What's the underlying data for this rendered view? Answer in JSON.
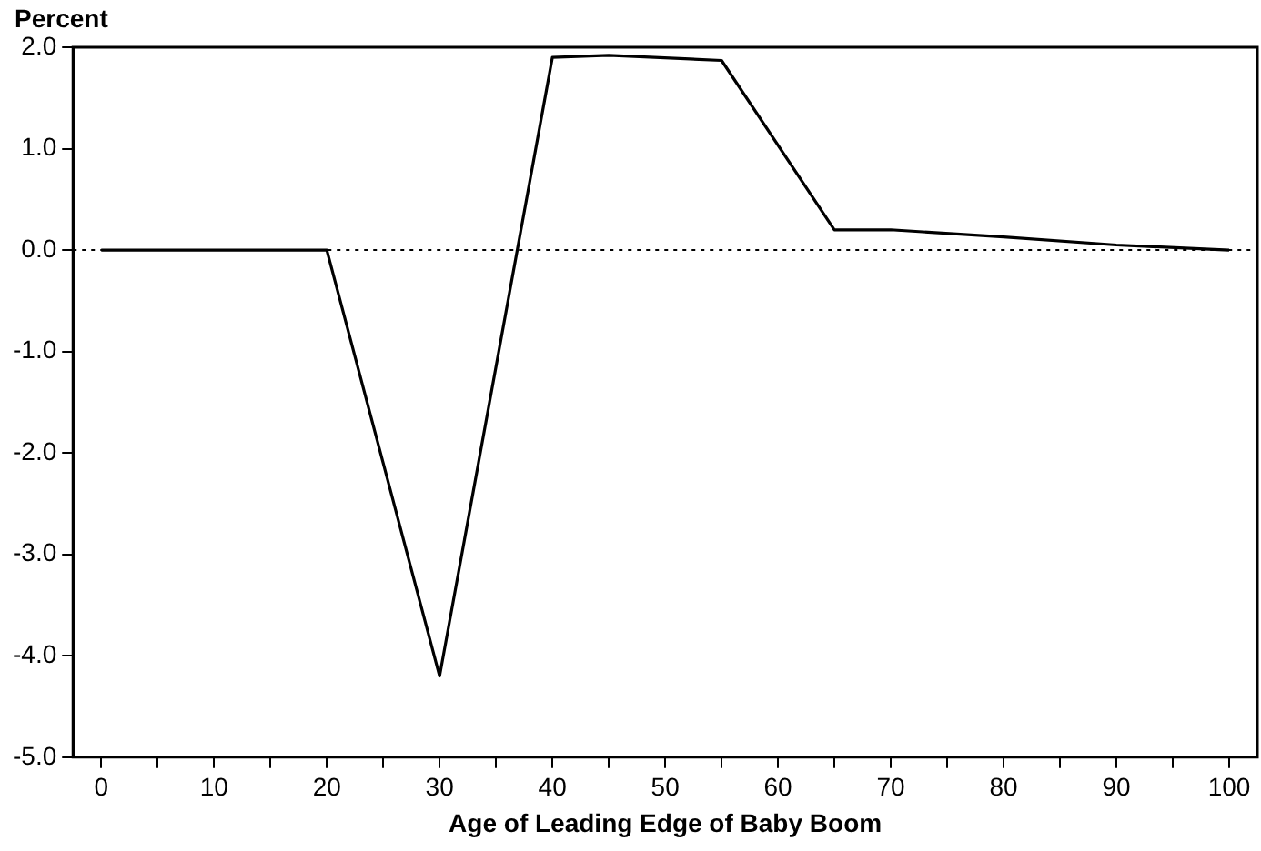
{
  "chart_data": {
    "type": "line",
    "ylabel": "Percent",
    "xlabel": "Age of Leading Edge of Baby Boom",
    "x": [
      0,
      20,
      30,
      40,
      45,
      55,
      65,
      70,
      80,
      90,
      100
    ],
    "series": [
      {
        "color": "#000000",
        "values": [
          0,
          0,
          -4.2,
          1.9,
          1.92,
          1.87,
          0.2,
          0.2,
          0.13,
          0.05,
          0
        ]
      }
    ],
    "xlim": [
      -2.5,
      102.5
    ],
    "xticks": [
      0,
      {
        "value": 5,
        "label": null
      },
      10,
      {
        "value": 15,
        "label": null
      },
      20,
      {
        "value": 25,
        "label": null
      },
      30,
      {
        "value": 35,
        "label": null
      },
      40,
      {
        "value": 45,
        "label": null
      },
      50,
      {
        "value": 55,
        "label": null
      },
      60,
      {
        "value": 65,
        "label": null
      },
      70,
      {
        "value": 75,
        "label": null
      },
      80,
      {
        "value": 85,
        "label": null
      },
      90,
      {
        "value": 95,
        "label": null
      },
      100
    ],
    "ylim": [
      -5,
      2
    ],
    "yticks": [
      {
        "value": -5,
        "label": "-5.0"
      },
      {
        "value": -4,
        "label": "-4.0"
      },
      {
        "value": -3,
        "label": "-3.0"
      },
      {
        "value": -2,
        "label": "-2.0"
      },
      {
        "value": -1,
        "label": "-1.0"
      },
      {
        "value": 0,
        "label": "0.0"
      },
      {
        "value": 1,
        "label": "1.0"
      },
      {
        "value": 2,
        "label": "2.0"
      }
    ],
    "ref_lines": [
      {
        "axis": "y",
        "value": 0,
        "color": "#000000",
        "line_style": "dotted"
      }
    ],
    "grid": false,
    "legend": false,
    "marker": "none",
    "line_style": "solid"
  }
}
